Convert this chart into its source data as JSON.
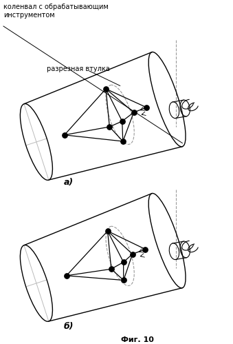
{
  "label_a": "а)",
  "label_b": "б)",
  "fig_caption": "Фиг. 10",
  "annotation1": "коленвал с обрабатывающим\nинструментом",
  "annotation2": "разрезная втулка",
  "bg_color": "#ffffff",
  "node_color": "#000000",
  "light_gray": "#bbbbbb",
  "dashed_color": "#999999"
}
